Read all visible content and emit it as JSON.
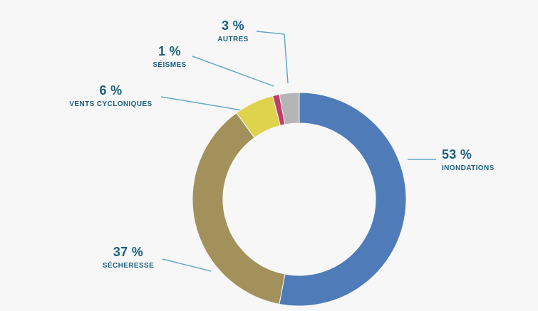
{
  "background_color": "#f7f7f7",
  "text_color": "#1a5f80",
  "leader_line_color": "#62a9c3",
  "chart_data": {
    "type": "pie",
    "variant": "donut",
    "title": "",
    "start_angle_deg_from_top": 0,
    "direction": "clockwise",
    "inner_radius_ratio": 0.71,
    "legend_position": "callout-labels",
    "series": [
      {
        "label": "INONDATIONS",
        "pct_label": "53 %",
        "value": 53,
        "color": "#4f7cb9"
      },
      {
        "label": "SÉCHERESSE",
        "pct_label": "37 %",
        "value": 37,
        "color": "#a3915c"
      },
      {
        "label": "VENTS CYCLONIQUES",
        "pct_label": "6 %",
        "value": 6,
        "color": "#ddd34d"
      },
      {
        "label": "SÉISMES",
        "pct_label": "1 %",
        "value": 1,
        "color": "#c23b6c"
      },
      {
        "label": "AUTRES",
        "pct_label": "3 %",
        "value": 3,
        "color": "#b5b5b5"
      }
    ]
  }
}
